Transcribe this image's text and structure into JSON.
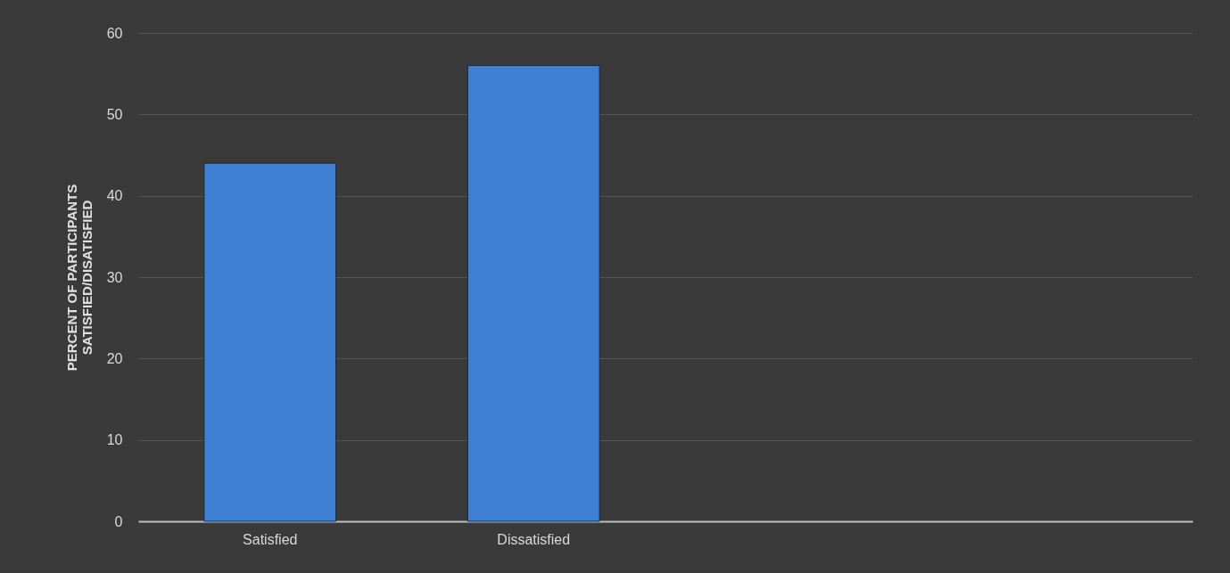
{
  "chart_data": {
    "type": "bar",
    "ylabel": "PERCENT OF PARTICIPANTS\nSATISFIED/DISATISFIED",
    "categories": [
      "Satisfied",
      "Dissatisfied",
      null,
      null
    ],
    "values": [
      44,
      56,
      null,
      null
    ],
    "color": "#3f7fd4",
    "ylim": [
      0,
      60
    ],
    "yticks": [
      0,
      10,
      20,
      30,
      40,
      50,
      60
    ],
    "grid": "y"
  }
}
